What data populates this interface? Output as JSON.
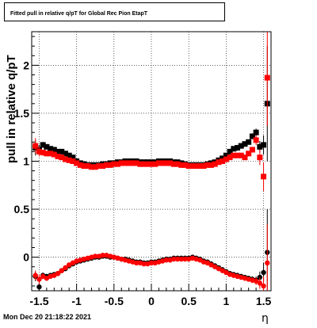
{
  "page": {
    "title": "Fitted pull in relative q/pT for Global Rec Pion EtapT",
    "datestamp": "Mon Dec 20 21:18:22 2021"
  },
  "chart_data": {
    "type": "scatter",
    "title": "Fitted pull in relative q/pT for Global Rec Pion EtapT",
    "xlabel": "η",
    "ylabel": "pull in relative q/pT",
    "xlim": [
      -1.6,
      1.6
    ],
    "ylim": [
      -0.35,
      2.35
    ],
    "x_ticks": [
      "-1.5",
      "-1",
      "-0.5",
      "0",
      "0.5",
      "1",
      "1.5"
    ],
    "y_ticks": [
      "0",
      "0.5",
      "1",
      "1.5",
      "2"
    ],
    "grid": true,
    "series": [
      {
        "name": "",
        "color": "#000000",
        "marker": "square",
        "x": [
          -1.55,
          -1.5,
          -1.45,
          -1.4,
          -1.35,
          -1.3,
          -1.25,
          -1.2,
          -1.15,
          -1.1,
          -1.05,
          -1.0,
          -0.95,
          -0.9,
          -0.85,
          -0.8,
          -0.75,
          -0.7,
          -0.65,
          -0.6,
          -0.55,
          -0.5,
          -0.45,
          -0.4,
          -0.35,
          -0.3,
          -0.25,
          -0.2,
          -0.15,
          -0.1,
          -0.05,
          0.0,
          0.05,
          0.1,
          0.15,
          0.2,
          0.25,
          0.3,
          0.35,
          0.4,
          0.45,
          0.5,
          0.55,
          0.6,
          0.65,
          0.7,
          0.75,
          0.8,
          0.85,
          0.9,
          0.95,
          1.0,
          1.05,
          1.1,
          1.15,
          1.2,
          1.25,
          1.3,
          1.35,
          1.4,
          1.45,
          1.5,
          1.55
        ],
        "y": [
          1.14,
          1.12,
          1.17,
          1.15,
          1.13,
          1.12,
          1.1,
          1.1,
          1.08,
          1.06,
          1.04,
          1.0,
          0.98,
          0.97,
          0.96,
          0.96,
          0.96,
          0.96,
          0.97,
          0.97,
          0.98,
          0.98,
          0.99,
          0.99,
          1.0,
          1.0,
          1.0,
          1.0,
          0.99,
          0.99,
          0.99,
          0.99,
          0.99,
          1.0,
          1.0,
          1.0,
          1.0,
          0.99,
          0.99,
          0.98,
          0.97,
          0.96,
          0.96,
          0.96,
          0.96,
          0.96,
          0.97,
          0.98,
          0.99,
          1.01,
          1.03,
          1.06,
          1.1,
          1.13,
          1.14,
          1.16,
          1.18,
          1.2,
          1.26,
          1.3,
          1.15,
          1.17,
          1.6
        ],
        "err": [
          0.08,
          0.05,
          0.03,
          0.02,
          0.02,
          0.02,
          0.02,
          0.02,
          0.02,
          0.02,
          0.02,
          0.02,
          0.02,
          0.02,
          0.02,
          0.02,
          0.02,
          0.02,
          0.02,
          0.02,
          0.02,
          0.02,
          0.02,
          0.02,
          0.02,
          0.02,
          0.02,
          0.02,
          0.02,
          0.02,
          0.02,
          0.02,
          0.02,
          0.02,
          0.02,
          0.02,
          0.02,
          0.02,
          0.02,
          0.02,
          0.02,
          0.02,
          0.02,
          0.02,
          0.02,
          0.02,
          0.02,
          0.02,
          0.02,
          0.02,
          0.02,
          0.02,
          0.02,
          0.02,
          0.02,
          0.02,
          0.02,
          0.02,
          0.03,
          0.04,
          0.06,
          0.1,
          0.6
        ]
      },
      {
        "name": "",
        "color": "#ff0000",
        "marker": "square",
        "x": [
          -1.55,
          -1.5,
          -1.45,
          -1.4,
          -1.35,
          -1.3,
          -1.25,
          -1.2,
          -1.15,
          -1.1,
          -1.05,
          -1.0,
          -0.95,
          -0.9,
          -0.85,
          -0.8,
          -0.75,
          -0.7,
          -0.65,
          -0.6,
          -0.55,
          -0.5,
          -0.45,
          -0.4,
          -0.35,
          -0.3,
          -0.25,
          -0.2,
          -0.15,
          -0.1,
          -0.05,
          0.0,
          0.05,
          0.1,
          0.15,
          0.2,
          0.25,
          0.3,
          0.35,
          0.4,
          0.45,
          0.5,
          0.55,
          0.6,
          0.65,
          0.7,
          0.75,
          0.8,
          0.85,
          0.9,
          0.95,
          1.0,
          1.05,
          1.1,
          1.15,
          1.2,
          1.25,
          1.3,
          1.35,
          1.4,
          1.45,
          1.5,
          1.55
        ],
        "y": [
          1.16,
          1.1,
          1.09,
          1.08,
          1.08,
          1.07,
          1.05,
          1.04,
          1.02,
          1.01,
          1.0,
          0.98,
          0.96,
          0.95,
          0.95,
          0.94,
          0.94,
          0.95,
          0.95,
          0.96,
          0.96,
          0.97,
          0.97,
          0.98,
          0.98,
          0.98,
          0.98,
          0.98,
          0.97,
          0.97,
          0.97,
          0.97,
          0.97,
          0.98,
          0.98,
          0.98,
          0.98,
          0.97,
          0.97,
          0.96,
          0.96,
          0.95,
          0.95,
          0.95,
          0.95,
          0.95,
          0.96,
          0.96,
          0.97,
          0.99,
          1.0,
          1.02,
          1.04,
          1.06,
          1.06,
          1.06,
          1.04,
          1.08,
          1.12,
          1.22,
          1.04,
          0.84,
          1.87
        ],
        "err": [
          0.08,
          0.05,
          0.03,
          0.02,
          0.02,
          0.02,
          0.02,
          0.02,
          0.02,
          0.02,
          0.02,
          0.02,
          0.02,
          0.02,
          0.02,
          0.02,
          0.02,
          0.02,
          0.02,
          0.02,
          0.02,
          0.02,
          0.02,
          0.02,
          0.02,
          0.02,
          0.02,
          0.02,
          0.02,
          0.02,
          0.02,
          0.02,
          0.02,
          0.02,
          0.02,
          0.02,
          0.02,
          0.02,
          0.02,
          0.02,
          0.02,
          0.02,
          0.02,
          0.02,
          0.02,
          0.02,
          0.02,
          0.02,
          0.02,
          0.02,
          0.02,
          0.02,
          0.02,
          0.02,
          0.02,
          0.02,
          0.02,
          0.02,
          0.03,
          0.05,
          0.08,
          0.15,
          0.5
        ]
      },
      {
        "name": "",
        "color": "#000000",
        "marker": "circle",
        "x": [
          -1.55,
          -1.5,
          -1.45,
          -1.4,
          -1.35,
          -1.3,
          -1.25,
          -1.2,
          -1.15,
          -1.1,
          -1.05,
          -1.0,
          -0.95,
          -0.9,
          -0.85,
          -0.8,
          -0.75,
          -0.7,
          -0.65,
          -0.6,
          -0.55,
          -0.5,
          -0.45,
          -0.4,
          -0.35,
          -0.3,
          -0.25,
          -0.2,
          -0.15,
          -0.1,
          -0.05,
          0.0,
          0.05,
          0.1,
          0.15,
          0.2,
          0.25,
          0.3,
          0.35,
          0.4,
          0.45,
          0.5,
          0.55,
          0.6,
          0.65,
          0.7,
          0.75,
          0.8,
          0.85,
          0.9,
          0.95,
          1.0,
          1.05,
          1.1,
          1.15,
          1.2,
          1.25,
          1.3,
          1.35,
          1.4,
          1.45,
          1.5,
          1.55
        ],
        "y": [
          -0.2,
          -0.31,
          -0.19,
          -0.2,
          -0.19,
          -0.18,
          -0.17,
          -0.14,
          -0.12,
          -0.09,
          -0.07,
          -0.05,
          -0.04,
          -0.03,
          -0.02,
          -0.01,
          0.0,
          0.0,
          0.01,
          0.01,
          0.0,
          0.0,
          -0.01,
          -0.02,
          -0.02,
          -0.03,
          -0.04,
          -0.05,
          -0.05,
          -0.06,
          -0.06,
          -0.05,
          -0.05,
          -0.04,
          -0.03,
          -0.02,
          -0.02,
          -0.01,
          -0.01,
          -0.01,
          -0.01,
          -0.01,
          0.0,
          -0.01,
          -0.02,
          -0.04,
          -0.05,
          -0.07,
          -0.09,
          -0.11,
          -0.13,
          -0.15,
          -0.17,
          -0.18,
          -0.19,
          -0.2,
          -0.21,
          -0.22,
          -0.23,
          -0.24,
          -0.21,
          -0.16,
          0.05
        ],
        "err": [
          0.05,
          0.05,
          0.03,
          0.02,
          0.02,
          0.02,
          0.02,
          0.02,
          0.02,
          0.02,
          0.02,
          0.02,
          0.02,
          0.02,
          0.02,
          0.02,
          0.02,
          0.02,
          0.02,
          0.02,
          0.02,
          0.02,
          0.02,
          0.02,
          0.02,
          0.02,
          0.02,
          0.02,
          0.02,
          0.02,
          0.02,
          0.02,
          0.02,
          0.02,
          0.02,
          0.02,
          0.02,
          0.02,
          0.02,
          0.02,
          0.02,
          0.02,
          0.02,
          0.02,
          0.02,
          0.02,
          0.02,
          0.02,
          0.02,
          0.02,
          0.02,
          0.02,
          0.02,
          0.02,
          0.02,
          0.02,
          0.02,
          0.02,
          0.03,
          0.04,
          0.06,
          0.1,
          0.45
        ]
      },
      {
        "name": "",
        "color": "#ff0000",
        "marker": "circle",
        "x": [
          -1.55,
          -1.5,
          -1.45,
          -1.4,
          -1.35,
          -1.3,
          -1.25,
          -1.2,
          -1.15,
          -1.1,
          -1.05,
          -1.0,
          -0.95,
          -0.9,
          -0.85,
          -0.8,
          -0.75,
          -0.7,
          -0.65,
          -0.6,
          -0.55,
          -0.5,
          -0.45,
          -0.4,
          -0.35,
          -0.3,
          -0.25,
          -0.2,
          -0.15,
          -0.1,
          -0.05,
          0.0,
          0.05,
          0.1,
          0.15,
          0.2,
          0.25,
          0.3,
          0.35,
          0.4,
          0.45,
          0.5,
          0.55,
          0.6,
          0.65,
          0.7,
          0.75,
          0.8,
          0.85,
          0.9,
          0.95,
          1.0,
          1.05,
          1.1,
          1.15,
          1.2,
          1.25,
          1.3,
          1.35,
          1.4,
          1.45,
          1.5,
          1.55
        ],
        "y": [
          -0.19,
          -0.23,
          -0.2,
          -0.22,
          -0.2,
          -0.19,
          -0.17,
          -0.14,
          -0.11,
          -0.08,
          -0.06,
          -0.04,
          -0.03,
          -0.02,
          -0.01,
          0.0,
          0.01,
          0.01,
          0.02,
          0.02,
          0.01,
          0.0,
          -0.01,
          -0.02,
          -0.03,
          -0.04,
          -0.05,
          -0.06,
          -0.06,
          -0.07,
          -0.07,
          -0.06,
          -0.06,
          -0.05,
          -0.04,
          -0.03,
          -0.03,
          -0.02,
          -0.02,
          -0.02,
          -0.02,
          -0.02,
          -0.01,
          -0.02,
          -0.03,
          -0.05,
          -0.06,
          -0.08,
          -0.1,
          -0.12,
          -0.14,
          -0.16,
          -0.18,
          -0.19,
          -0.2,
          -0.21,
          -0.22,
          -0.23,
          -0.24,
          -0.25,
          -0.27,
          -0.3,
          -0.06
        ],
        "err": [
          0.05,
          0.05,
          0.03,
          0.02,
          0.02,
          0.02,
          0.02,
          0.02,
          0.02,
          0.02,
          0.02,
          0.02,
          0.02,
          0.02,
          0.02,
          0.02,
          0.02,
          0.02,
          0.02,
          0.02,
          0.02,
          0.02,
          0.02,
          0.02,
          0.02,
          0.02,
          0.02,
          0.02,
          0.02,
          0.02,
          0.02,
          0.02,
          0.02,
          0.02,
          0.02,
          0.02,
          0.02,
          0.02,
          0.02,
          0.02,
          0.02,
          0.02,
          0.02,
          0.02,
          0.02,
          0.02,
          0.02,
          0.02,
          0.02,
          0.02,
          0.02,
          0.02,
          0.02,
          0.02,
          0.02,
          0.02,
          0.02,
          0.02,
          0.03,
          0.04,
          0.06,
          0.1,
          0.4
        ]
      }
    ]
  }
}
